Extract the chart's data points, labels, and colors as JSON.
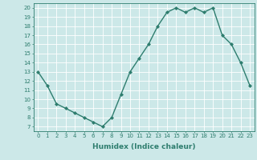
{
  "x": [
    0,
    1,
    2,
    3,
    4,
    5,
    6,
    7,
    8,
    9,
    10,
    11,
    12,
    13,
    14,
    15,
    16,
    17,
    18,
    19,
    20,
    21,
    22,
    23
  ],
  "y": [
    13,
    11.5,
    9.5,
    9,
    8.5,
    8,
    7.5,
    7,
    8,
    10.5,
    13,
    14.5,
    16,
    18,
    19.5,
    20,
    19.5,
    20,
    19.5,
    20,
    17,
    16,
    14,
    11.5
  ],
  "line_color": "#2e7d6e",
  "marker": "D",
  "marker_size": 2,
  "linewidth": 1.0,
  "bg_color": "#cce8e8",
  "grid_color": "#ffffff",
  "grid_linewidth": 0.6,
  "xlabel": "Humidex (Indice chaleur)",
  "xlim": [
    -0.5,
    23.5
  ],
  "ylim": [
    6.5,
    20.5
  ],
  "yticks": [
    7,
    8,
    9,
    10,
    11,
    12,
    13,
    14,
    15,
    16,
    17,
    18,
    19,
    20
  ],
  "xticks": [
    0,
    1,
    2,
    3,
    4,
    5,
    6,
    7,
    8,
    9,
    10,
    11,
    12,
    13,
    14,
    15,
    16,
    17,
    18,
    19,
    20,
    21,
    22,
    23
  ],
  "tick_color": "#2e7d6e",
  "label_color": "#2e7d6e",
  "axis_color": "#2e7d6e",
  "tick_fontsize": 5,
  "xlabel_fontsize": 6.5
}
